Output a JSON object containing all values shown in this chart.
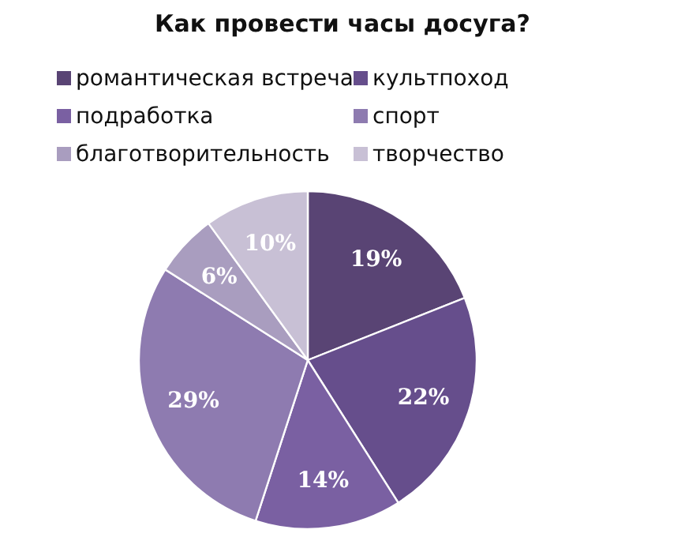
{
  "chart_data": {
    "type": "pie",
    "title": "Как провести часы досуга?",
    "categories": [
      "романтическая встреча",
      "культпоход",
      "подработка",
      "спорт",
      "благотворительность",
      "творчество"
    ],
    "values": [
      19,
      22,
      14,
      29,
      6,
      10
    ],
    "value_labels": [
      "19%",
      "22%",
      "14%",
      "29%",
      "6%",
      "10%"
    ],
    "colors": [
      "#594474",
      "#664e8c",
      "#7a60a2",
      "#8e7bb0",
      "#a99dbf",
      "#c8c0d5"
    ],
    "legend": "top"
  }
}
